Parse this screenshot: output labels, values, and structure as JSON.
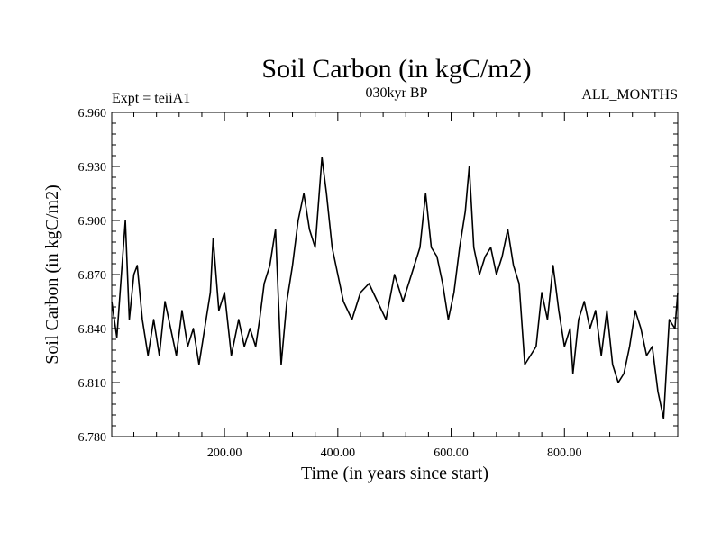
{
  "header": {
    "title": "Soil Carbon (in kgC/m2)",
    "experiment": "Expt = teiiA1",
    "period": "030kyr BP",
    "months": "ALL_MONTHS"
  },
  "chart_data": {
    "type": "line",
    "xlabel": "Time (in years since start)",
    "ylabel": "Soil Carbon (in kgC/m2)",
    "xlim": [
      1,
      1000
    ],
    "ylim": [
      6.78,
      6.96
    ],
    "x_tick_values": [
      200,
      400,
      600,
      800
    ],
    "x_tick_labels": [
      "200.00",
      "400.00",
      "600.00",
      "800.00"
    ],
    "y_tick_values": [
      6.78,
      6.81,
      6.84,
      6.87,
      6.9,
      6.93,
      6.96
    ],
    "y_tick_labels": [
      "6.780",
      "6.810",
      "6.840",
      "6.870",
      "6.900",
      "6.930",
      "6.960"
    ],
    "line_color": "#000000",
    "series": [
      {
        "x": [
          1,
          10,
          18,
          25,
          32,
          40,
          46,
          55,
          65,
          75,
          85,
          95,
          105,
          115,
          125,
          135,
          145,
          155,
          165,
          175,
          180,
          190,
          200,
          212,
          225,
          235,
          245,
          255,
          262,
          270,
          280,
          290,
          300,
          310,
          320,
          330,
          340,
          350,
          360,
          372,
          380,
          390,
          400,
          410,
          425,
          440,
          455,
          470,
          485,
          500,
          515,
          530,
          545,
          555,
          565,
          575,
          585,
          595,
          605,
          615,
          625,
          632,
          640,
          650,
          660,
          670,
          680,
          690,
          700,
          710,
          720,
          730,
          740,
          750,
          760,
          770,
          780,
          790,
          800,
          810,
          815,
          825,
          835,
          845,
          855,
          865,
          875,
          885,
          895,
          905,
          915,
          925,
          935,
          945,
          955,
          965,
          975,
          985,
          995,
          1000
        ],
        "y": [
          6.855,
          6.835,
          6.87,
          6.9,
          6.845,
          6.87,
          6.875,
          6.845,
          6.825,
          6.845,
          6.825,
          6.855,
          6.84,
          6.825,
          6.85,
          6.83,
          6.84,
          6.82,
          6.84,
          6.86,
          6.89,
          6.85,
          6.86,
          6.825,
          6.845,
          6.83,
          6.84,
          6.83,
          6.845,
          6.865,
          6.875,
          6.895,
          6.82,
          6.855,
          6.875,
          6.9,
          6.915,
          6.895,
          6.885,
          6.935,
          6.915,
          6.885,
          6.87,
          6.855,
          6.845,
          6.86,
          6.865,
          6.855,
          6.845,
          6.87,
          6.855,
          6.87,
          6.885,
          6.915,
          6.885,
          6.88,
          6.865,
          6.845,
          6.86,
          6.885,
          6.905,
          6.93,
          6.885,
          6.87,
          6.88,
          6.885,
          6.87,
          6.88,
          6.895,
          6.875,
          6.865,
          6.82,
          6.825,
          6.83,
          6.86,
          6.845,
          6.875,
          6.85,
          6.83,
          6.84,
          6.815,
          6.845,
          6.855,
          6.84,
          6.85,
          6.825,
          6.85,
          6.82,
          6.81,
          6.815,
          6.83,
          6.85,
          6.84,
          6.825,
          6.83,
          6.805,
          6.79,
          6.845,
          6.84,
          6.86
        ]
      }
    ]
  }
}
